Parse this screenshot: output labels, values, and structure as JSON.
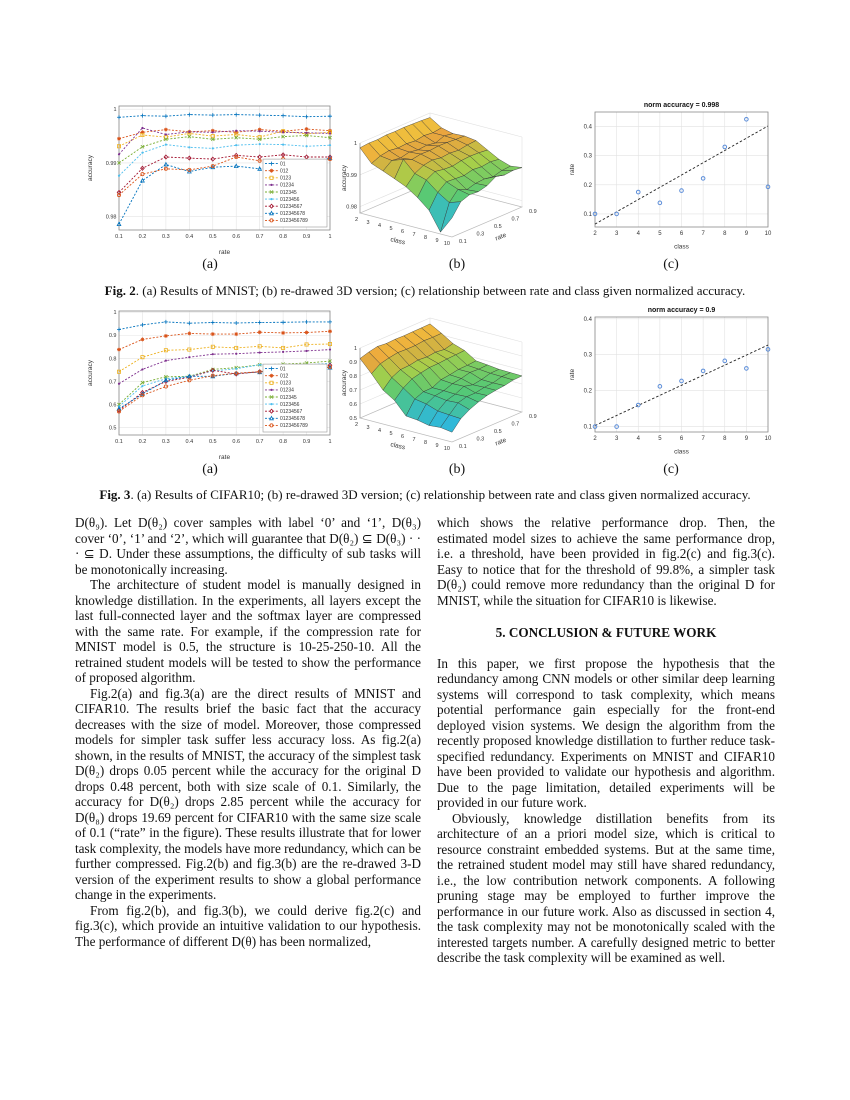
{
  "figures": {
    "fig2": {
      "sublabels": [
        "(a)",
        "(b)",
        "(c)"
      ],
      "caption_label": "Fig. 2",
      "caption_text": ". (a) Results of MNIST; (b) re-drawed 3D version; (c) relationship between rate and class given normalized accuracy."
    },
    "fig3": {
      "sublabels": [
        "(a)",
        "(b)",
        "(c)"
      ],
      "caption_label": "Fig. 3",
      "caption_text": ". (a) Results of CIFAR10; (b) re-drawed 3D version; (c) relationship between rate and class given normalized accuracy."
    }
  },
  "body": {
    "left_paragraphs": [
      "D(θ₉). Let D(θ₂) cover samples with label ‘0’ and ‘1’, D(θ₃) cover ‘0’, ‘1’ and ‘2’, which will guarantee that D(θ₂) ⊆ D(θ₃) · · · ⊆ D.  Under these assumptions, the difficulty of sub tasks will be monotonically increasing.",
      "The architecture of student model is manually designed in knowledge distillation.  In the experiments, all layers except the last full-connected layer and the softmax layer are compressed with the same rate.  For example, if the compression rate for MNIST model is 0.5, the structure is 10-25-250-10. All the retrained student models will be tested to show the performance of proposed algorithm.",
      "Fig.2(a) and fig.3(a) are the direct results of MNIST and CIFAR10.  The results brief the basic fact that the accuracy decreases with the size of model.   Moreover, those compressed models for simpler task suffer less accuracy loss.  As fig.2(a) shown, in the results of MNIST, the accuracy of the simplest task D(θ₂) drops 0.05 percent while the accuracy for the original D drops 0.48 percent, both with size scale of 0.1. Similarly, the accuracy for D(θ₂) drops 2.85 percent while the accuracy for D(θ₈) drops 19.69 percent for CIFAR10 with the same size scale of 0.1 (“rate” in the figure).  These results illustrate that for lower task complexity, the models have more redundancy, which can be further compressed. Fig.2(b) and fig.3(b) are the re-drawed 3-D version of the experiment results to show a global performance change in the experiments.",
      "From fig.2(b), and fig.3(b), we could derive fig.2(c) and fig.3(c), which provide an intuitive validation to our hypothesis. The performance of different D(θ) has been normalized,"
    ],
    "right_paragraph_continuation": "which shows the relative performance drop.  Then, the estimated model sizes to achieve the same performance drop, i.e.  a threshold, have been provided in fig.2(c) and fig.3(c). Easy to notice that for the threshold of 99.8%, a simpler task D(θ₂) could remove more redundancy than the original D for MNIST, while the situation for CIFAR10 is likewise.",
    "heading": "5. CONCLUSION & FUTURE WORK",
    "right_paragraphs_after_heading": [
      "In this paper, we first propose the hypothesis that the redundancy among CNN models or other similar deep learning systems will correspond to task complexity, which means potential performance gain especially for the front-end deployed vision systems.  We design the algorithm from the recently proposed knowledge distillation to further reduce task-specified redundancy.  Experiments on MNIST and CIFAR10 have been provided to validate our hypothesis and algorithm.  Due to the page limitation, detailed experiments will be provided in our future work.",
      "Obviously, knowledge distillation benefits from its architecture of an a priori model size, which is critical to resource constraint embedded systems.  But at the same time, the retrained student model may still have shared redundancy, i.e., the low contribution network components. A following pruning stage may be employed to further improve the performance in our future work. Also as discussed in section 4, the task complexity may not be monotonically scaled with the interested targets number. A carefully designed metric to better describe the task complexity will be examined as well."
    ]
  },
  "chart_data": [
    {
      "id": "fig2a",
      "type": "line",
      "title": "",
      "xlabel": "rate",
      "ylabel": "accuracy",
      "x": [
        0.1,
        0.2,
        0.3,
        0.4,
        0.5,
        0.6,
        0.7,
        0.8,
        0.9,
        1
      ],
      "xticks": [
        0.1,
        0.2,
        0.3,
        0.4,
        0.5,
        0.6,
        0.7,
        0.8,
        0.9,
        1
      ],
      "ylim": [
        0.9775,
        1.0006
      ],
      "yticks": [
        0.98,
        0.99,
        1
      ],
      "grid": true,
      "legend_position": "lower-right",
      "series": [
        {
          "name": "01",
          "color": "#0072BD",
          "marker": "plus",
          "values": [
            0.9985,
            0.9988,
            0.9987,
            0.999,
            0.9989,
            0.999,
            0.9989,
            0.9988,
            0.9986,
            0.9987
          ]
        },
        {
          "name": "012",
          "color": "#D95319",
          "marker": "asterisk",
          "values": [
            0.9945,
            0.9957,
            0.9962,
            0.9958,
            0.996,
            0.9957,
            0.9962,
            0.9959,
            0.9963,
            0.996
          ]
        },
        {
          "name": "0123",
          "color": "#EDB120",
          "marker": "square",
          "values": [
            0.9931,
            0.9952,
            0.9948,
            0.9955,
            0.995,
            0.9953,
            0.9948,
            0.9959,
            0.9954,
            0.9957
          ]
        },
        {
          "name": "01234",
          "color": "#7E2F8E",
          "marker": "dot",
          "values": [
            0.9916,
            0.9965,
            0.9953,
            0.9958,
            0.9957,
            0.996,
            0.9959,
            0.9957,
            0.9956,
            0.9955
          ]
        },
        {
          "name": "012345",
          "color": "#77AC30",
          "marker": "x",
          "values": [
            0.99,
            0.993,
            0.9944,
            0.9949,
            0.9944,
            0.9947,
            0.9944,
            0.9949,
            0.9951,
            0.9947
          ]
        },
        {
          "name": "0123456",
          "color": "#4DBEEE",
          "marker": "dot",
          "values": [
            0.9876,
            0.9919,
            0.9934,
            0.9929,
            0.9927,
            0.9933,
            0.9935,
            0.9934,
            0.9931,
            0.9933
          ]
        },
        {
          "name": "01234567",
          "color": "#A2142F",
          "marker": "diamond",
          "values": [
            0.9845,
            0.989,
            0.9911,
            0.9909,
            0.9907,
            0.9914,
            0.9911,
            0.9915,
            0.9911,
            0.9911
          ]
        },
        {
          "name": "012345678",
          "color": "#0072BD",
          "marker": "triangle",
          "values": [
            0.9786,
            0.9867,
            0.9897,
            0.9884,
            0.9892,
            0.9894,
            0.9889,
            0.9897,
            0.9899,
            0.9909
          ]
        },
        {
          "name": "0123456789",
          "color": "#D95319",
          "marker": "circle",
          "values": [
            0.984,
            0.9879,
            0.9889,
            0.9887,
            0.9894,
            0.9911,
            0.9904,
            0.9907,
            0.9904,
            0.9907
          ]
        }
      ]
    },
    {
      "id": "fig2b",
      "type": "surface",
      "xlabel": "class",
      "ylabel": "rate",
      "zlabel": "accuracy",
      "classes": [
        2,
        3,
        4,
        5,
        6,
        7,
        8,
        9,
        10
      ],
      "rates": [
        0.1,
        0.2,
        0.3,
        0.4,
        0.5,
        0.6,
        0.7,
        0.8,
        0.9
      ],
      "rate_ticks": [
        0.1,
        0.3,
        0.5,
        0.7,
        0.9
      ],
      "zlim": [
        0.978,
        1.0
      ],
      "zticks": [
        0.98,
        0.99,
        1
      ],
      "colormap": [
        [
          0,
          "#1732d6"
        ],
        [
          0.2,
          "#2db7e0"
        ],
        [
          0.45,
          "#52c878"
        ],
        [
          0.65,
          "#a6cf4a"
        ],
        [
          0.82,
          "#eda33d"
        ],
        [
          1,
          "#f2ee3e"
        ]
      ],
      "z": [
        [
          0.9985,
          0.9988,
          0.9987,
          0.999,
          0.9989,
          0.999,
          0.9989,
          0.9988,
          0.9986
        ],
        [
          0.9945,
          0.9957,
          0.9962,
          0.9958,
          0.996,
          0.9957,
          0.9962,
          0.9959,
          0.9963
        ],
        [
          0.9931,
          0.9952,
          0.9948,
          0.9955,
          0.995,
          0.9953,
          0.9948,
          0.9959,
          0.9954
        ],
        [
          0.9916,
          0.9965,
          0.9953,
          0.9958,
          0.9957,
          0.996,
          0.9959,
          0.9957,
          0.9956
        ],
        [
          0.99,
          0.993,
          0.9944,
          0.9949,
          0.9944,
          0.9947,
          0.9944,
          0.9949,
          0.9951
        ],
        [
          0.9876,
          0.9919,
          0.9934,
          0.9929,
          0.9927,
          0.9933,
          0.9935,
          0.9934,
          0.9931
        ],
        [
          0.9845,
          0.989,
          0.9911,
          0.9909,
          0.9907,
          0.9914,
          0.9911,
          0.9915,
          0.9911
        ],
        [
          0.9786,
          0.9867,
          0.9897,
          0.9884,
          0.9892,
          0.9894,
          0.9889,
          0.9897,
          0.9899
        ],
        [
          0.984,
          0.9879,
          0.9889,
          0.9887,
          0.9894,
          0.9911,
          0.9904,
          0.9907,
          0.9904
        ]
      ]
    },
    {
      "id": "fig2c",
      "type": "scatter",
      "title": "norm accuracy = 0.998",
      "xlabel": "class",
      "ylabel": "rate",
      "xlim": [
        2,
        10
      ],
      "xticks": [
        2,
        3,
        4,
        5,
        6,
        7,
        8,
        9,
        10
      ],
      "ylim": [
        0.055,
        0.45
      ],
      "yticks": [
        0.1,
        0.2,
        0.3,
        0.4
      ],
      "grid": true,
      "point_color": "#5b8dd9",
      "points": [
        [
          2,
          0.1
        ],
        [
          3,
          0.1
        ],
        [
          4,
          0.175
        ],
        [
          5,
          0.138
        ],
        [
          6,
          0.18
        ],
        [
          7,
          0.222
        ],
        [
          8,
          0.33
        ],
        [
          9,
          0.425
        ],
        [
          10,
          0.193
        ]
      ],
      "trend": [
        [
          2,
          0.065
        ],
        [
          10,
          0.402
        ]
      ]
    },
    {
      "id": "fig3a",
      "type": "line",
      "title": "",
      "xlabel": "rate",
      "ylabel": "accuracy",
      "x": [
        0.1,
        0.2,
        0.3,
        0.4,
        0.5,
        0.6,
        0.7,
        0.8,
        0.9,
        1
      ],
      "xticks": [
        0.1,
        0.2,
        0.3,
        0.4,
        0.5,
        0.6,
        0.7,
        0.8,
        0.9,
        1
      ],
      "ylim": [
        0.468,
        1.005
      ],
      "yticks": [
        0.5,
        0.6,
        0.7,
        0.8,
        0.9,
        1
      ],
      "grid": true,
      "legend_position": "lower-right",
      "series": [
        {
          "name": "01",
          "color": "#0072BD",
          "marker": "plus",
          "values": [
            0.925,
            0.945,
            0.958,
            0.952,
            0.955,
            0.953,
            0.955,
            0.956,
            0.958,
            0.958
          ]
        },
        {
          "name": "012",
          "color": "#D95319",
          "marker": "asterisk",
          "values": [
            0.838,
            0.882,
            0.897,
            0.908,
            0.905,
            0.905,
            0.913,
            0.91,
            0.912,
            0.917
          ]
        },
        {
          "name": "0123",
          "color": "#EDB120",
          "marker": "square",
          "values": [
            0.742,
            0.805,
            0.835,
            0.838,
            0.85,
            0.845,
            0.852,
            0.845,
            0.86,
            0.862
          ]
        },
        {
          "name": "01234",
          "color": "#7E2F8E",
          "marker": "dot",
          "values": [
            0.69,
            0.752,
            0.79,
            0.805,
            0.818,
            0.82,
            0.825,
            0.828,
            0.832,
            0.838
          ]
        },
        {
          "name": "012345",
          "color": "#77AC30",
          "marker": "x",
          "values": [
            0.6,
            0.695,
            0.72,
            0.722,
            0.752,
            0.76,
            0.772,
            0.775,
            0.78,
            0.788
          ]
        },
        {
          "name": "0123456",
          "color": "#4DBEEE",
          "marker": "dot",
          "values": [
            0.592,
            0.68,
            0.712,
            0.722,
            0.745,
            0.755,
            0.772,
            0.768,
            0.772,
            0.778
          ]
        },
        {
          "name": "01234567",
          "color": "#A2142F",
          "marker": "diamond",
          "values": [
            0.575,
            0.652,
            0.7,
            0.718,
            0.748,
            0.732,
            0.742,
            0.76,
            0.762,
            0.77
          ]
        },
        {
          "name": "012345678",
          "color": "#0072BD",
          "marker": "triangle",
          "values": [
            0.582,
            0.645,
            0.705,
            0.722,
            0.722,
            0.735,
            0.74,
            0.758,
            0.76,
            0.76
          ]
        },
        {
          "name": "0123456789",
          "color": "#D95319",
          "marker": "circle",
          "values": [
            0.57,
            0.64,
            0.678,
            0.705,
            0.725,
            0.735,
            0.742,
            0.755,
            0.758,
            0.762
          ]
        }
      ]
    },
    {
      "id": "fig3b",
      "type": "surface",
      "xlabel": "class",
      "ylabel": "rate",
      "zlabel": "accuracy",
      "classes": [
        2,
        3,
        4,
        5,
        6,
        7,
        8,
        9,
        10
      ],
      "rates": [
        0.1,
        0.2,
        0.3,
        0.4,
        0.5,
        0.6,
        0.7,
        0.8,
        0.9
      ],
      "rate_ticks": [
        0.1,
        0.3,
        0.5,
        0.7,
        0.9
      ],
      "zlim": [
        0.5,
        1.0
      ],
      "zticks": [
        0.5,
        0.6,
        0.7,
        0.8,
        0.9,
        1
      ],
      "colormap": [
        [
          0,
          "#1732d6"
        ],
        [
          0.2,
          "#2db7e0"
        ],
        [
          0.45,
          "#52c878"
        ],
        [
          0.65,
          "#a6cf4a"
        ],
        [
          0.82,
          "#eda33d"
        ],
        [
          1,
          "#f2ee3e"
        ]
      ],
      "z": [
        [
          0.925,
          0.945,
          0.958,
          0.952,
          0.955,
          0.953,
          0.955,
          0.956,
          0.958
        ],
        [
          0.838,
          0.882,
          0.897,
          0.908,
          0.905,
          0.905,
          0.913,
          0.91,
          0.912
        ],
        [
          0.742,
          0.805,
          0.835,
          0.838,
          0.85,
          0.845,
          0.852,
          0.845,
          0.86
        ],
        [
          0.69,
          0.752,
          0.79,
          0.805,
          0.818,
          0.82,
          0.825,
          0.828,
          0.832
        ],
        [
          0.6,
          0.695,
          0.72,
          0.722,
          0.752,
          0.76,
          0.772,
          0.775,
          0.78
        ],
        [
          0.592,
          0.68,
          0.712,
          0.722,
          0.745,
          0.755,
          0.772,
          0.768,
          0.772
        ],
        [
          0.575,
          0.652,
          0.7,
          0.718,
          0.748,
          0.732,
          0.742,
          0.76,
          0.762
        ],
        [
          0.582,
          0.645,
          0.705,
          0.722,
          0.722,
          0.735,
          0.74,
          0.758,
          0.76
        ],
        [
          0.57,
          0.64,
          0.678,
          0.705,
          0.725,
          0.735,
          0.742,
          0.755,
          0.758
        ]
      ]
    },
    {
      "id": "fig3c",
      "type": "scatter",
      "title": "norm accuracy = 0.9",
      "xlabel": "class",
      "ylabel": "rate",
      "xlim": [
        2,
        10
      ],
      "xticks": [
        2,
        3,
        4,
        5,
        6,
        7,
        8,
        9,
        10
      ],
      "ylim": [
        0.085,
        0.405
      ],
      "yticks": [
        0.1,
        0.2,
        0.3,
        0.4
      ],
      "grid": true,
      "point_color": "#5b8dd9",
      "points": [
        [
          2,
          0.1
        ],
        [
          3,
          0.1
        ],
        [
          4,
          0.16
        ],
        [
          5,
          0.212
        ],
        [
          6,
          0.227
        ],
        [
          7,
          0.255
        ],
        [
          8,
          0.283
        ],
        [
          9,
          0.262
        ],
        [
          10,
          0.315
        ]
      ],
      "trend": [
        [
          2,
          0.103
        ],
        [
          10,
          0.327
        ]
      ]
    }
  ]
}
